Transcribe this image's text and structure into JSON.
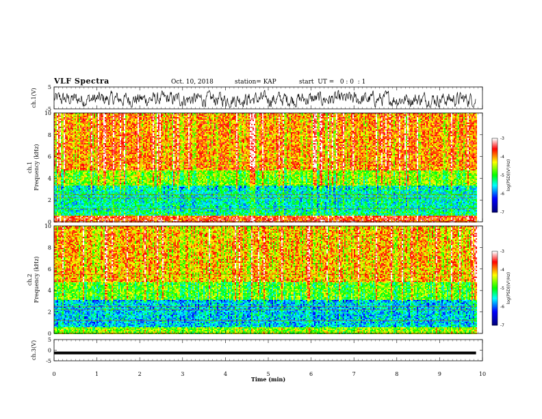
{
  "header": {
    "title": "VLF Spectra",
    "date": "Oct. 10, 2018",
    "station": "station= KAP",
    "start": "start  UT =   0 : 0  : 1"
  },
  "colors": {
    "low": "#000080",
    "blue": "#0000ff",
    "cyan": "#00ffff",
    "green": "#00ff00",
    "yellow": "#ffff00",
    "red": "#ff0000",
    "high": "#ffffff"
  },
  "chart_data": [
    {
      "type": "line",
      "name": "ch1-waveform",
      "ylabel": "ch.1(V)",
      "ylim": [
        -5,
        5
      ],
      "yticks": [
        "5",
        "-5"
      ],
      "x_range_min": [
        0,
        9.85
      ],
      "description_level": "noisy voltage waveform fluctuating roughly between -4 and +3 V"
    },
    {
      "type": "heatmap",
      "name": "ch1-spectrogram",
      "ylabel": "ch.1\nFrequency  (kHz)",
      "ylim": [
        0,
        10
      ],
      "yticks": [
        "0",
        "2",
        "4",
        "6",
        "8",
        "10"
      ],
      "x_range_min": [
        0,
        9.85
      ],
      "colorbar": {
        "label": "log(PSD)(V²/Hz)",
        "ticks": [
          "-3",
          "-4",
          "-5",
          "-6",
          "-7"
        ],
        "range": [
          -7,
          -3
        ]
      },
      "bands": [
        {
          "f_khz": [
            0,
            0.6
          ],
          "level": -3.6
        },
        {
          "f_khz": [
            0.6,
            1.0
          ],
          "level": -5.2
        },
        {
          "f_khz": [
            1.0,
            3.4
          ],
          "level": -5.4
        },
        {
          "f_khz": [
            3.4,
            4.8
          ],
          "level": -4.6
        },
        {
          "f_khz": [
            4.8,
            10
          ],
          "level": -3.9
        }
      ]
    },
    {
      "type": "heatmap",
      "name": "ch2-spectrogram",
      "ylabel": "ch.2\nFrequency  (kHz)",
      "ylim": [
        0,
        10
      ],
      "yticks": [
        "0",
        "2",
        "4",
        "6",
        "8",
        "10"
      ],
      "x_range_min": [
        0,
        9.85
      ],
      "colorbar": {
        "label": "log(PSD)(V²/Hz)",
        "ticks": [
          "-3",
          "-4",
          "-5",
          "-6",
          "-7"
        ],
        "range": [
          -7,
          -3
        ]
      },
      "bands": [
        {
          "f_khz": [
            0,
            0.6
          ],
          "level": -4.6
        },
        {
          "f_khz": [
            0.6,
            3.2
          ],
          "level": -5.6
        },
        {
          "f_khz": [
            3.2,
            4.8
          ],
          "level": -4.7
        },
        {
          "f_khz": [
            4.8,
            10
          ],
          "level": -4.0
        }
      ]
    },
    {
      "type": "line",
      "name": "ch3-waveform",
      "ylabel": "ch.3(V)",
      "ylim": [
        -5,
        5
      ],
      "yticks": [
        "5",
        "0",
        "-5"
      ],
      "x_range_min": [
        0,
        9.85
      ],
      "values_constant": -1.3
    }
  ],
  "xaxis": {
    "label": "Time  (min)",
    "ticks": [
      "0",
      "1",
      "2",
      "3",
      "4",
      "5",
      "6",
      "7",
      "8",
      "9",
      "10"
    ],
    "range": [
      0,
      10
    ]
  }
}
